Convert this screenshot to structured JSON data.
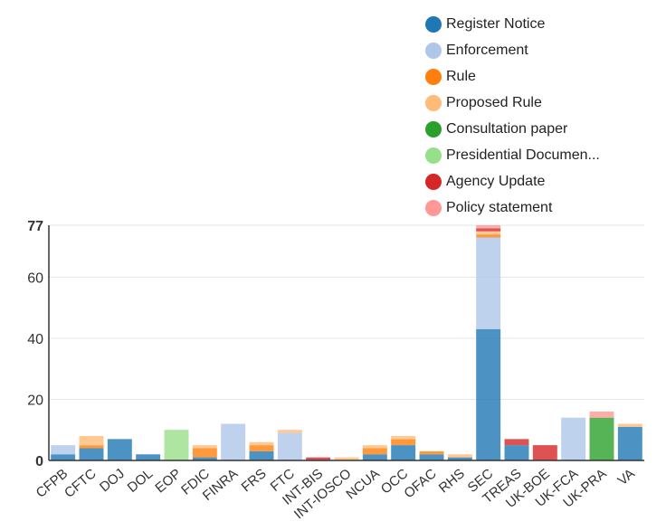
{
  "chart_data": {
    "type": "bar",
    "stacked": true,
    "categories": [
      "CFPB",
      "CFTC",
      "DOJ",
      "DOL",
      "EOP",
      "FDIC",
      "FINRA",
      "FRS",
      "FTC",
      "INT-BIS",
      "INT-IOSCO",
      "NCUA",
      "OCC",
      "OFAC",
      "RHS",
      "SEC",
      "TREAS",
      "UK-BOE",
      "UK-FCA",
      "UK-PRA",
      "VA"
    ],
    "series": [
      {
        "name": "Register Notice",
        "color": "#1f77b4",
        "values": [
          2,
          4,
          7,
          2,
          0,
          1,
          0,
          3,
          0,
          0,
          0,
          2,
          5,
          2,
          1,
          43,
          5,
          0,
          0,
          0,
          11
        ]
      },
      {
        "name": "Enforcement",
        "color": "#aec7e8",
        "values": [
          3,
          0,
          0,
          0,
          0,
          0,
          12,
          0,
          9,
          0,
          0,
          0,
          0,
          0,
          0,
          30,
          0,
          0,
          14,
          0,
          0
        ]
      },
      {
        "name": "Rule",
        "color": "#ff7f0e",
        "values": [
          0,
          1,
          0,
          0,
          0,
          3,
          0,
          2,
          0,
          0,
          0,
          2,
          2,
          1,
          0,
          1,
          0,
          0,
          0,
          0,
          0
        ]
      },
      {
        "name": "Proposed Rule",
        "color": "#ffbb78",
        "values": [
          0,
          3,
          0,
          0,
          0,
          1,
          0,
          1,
          1,
          0,
          1,
          1,
          1,
          0,
          1,
          1,
          0,
          0,
          0,
          0,
          1
        ]
      },
      {
        "name": "Consultation paper",
        "color": "#2ca02c",
        "values": [
          0,
          0,
          0,
          0,
          0,
          0,
          0,
          0,
          0,
          0,
          0,
          0,
          0,
          0,
          0,
          0,
          0,
          0,
          0,
          14,
          0
        ]
      },
      {
        "name": "Presidential Documen...",
        "color": "#98df8a",
        "values": [
          0,
          0,
          0,
          0,
          10,
          0,
          0,
          0,
          0,
          0,
          0,
          0,
          0,
          0,
          0,
          0,
          0,
          0,
          0,
          0,
          0
        ]
      },
      {
        "name": "Agency Update",
        "color": "#d62728",
        "values": [
          0,
          0,
          0,
          0,
          0,
          0,
          0,
          0,
          0,
          1,
          0,
          0,
          0,
          0,
          0,
          1,
          2,
          5,
          0,
          0,
          0
        ]
      },
      {
        "name": "Policy statement",
        "color": "#ff9896",
        "values": [
          0,
          0,
          0,
          0,
          0,
          0,
          0,
          0,
          0,
          0,
          0,
          0,
          0,
          0,
          0,
          1,
          0,
          0,
          0,
          2,
          0
        ]
      }
    ],
    "ylim": [
      0,
      77
    ],
    "yticks": [
      0,
      20,
      40,
      60,
      77
    ],
    "grid": true,
    "legend_position": "top-right",
    "xlabel": "",
    "ylabel": ""
  }
}
